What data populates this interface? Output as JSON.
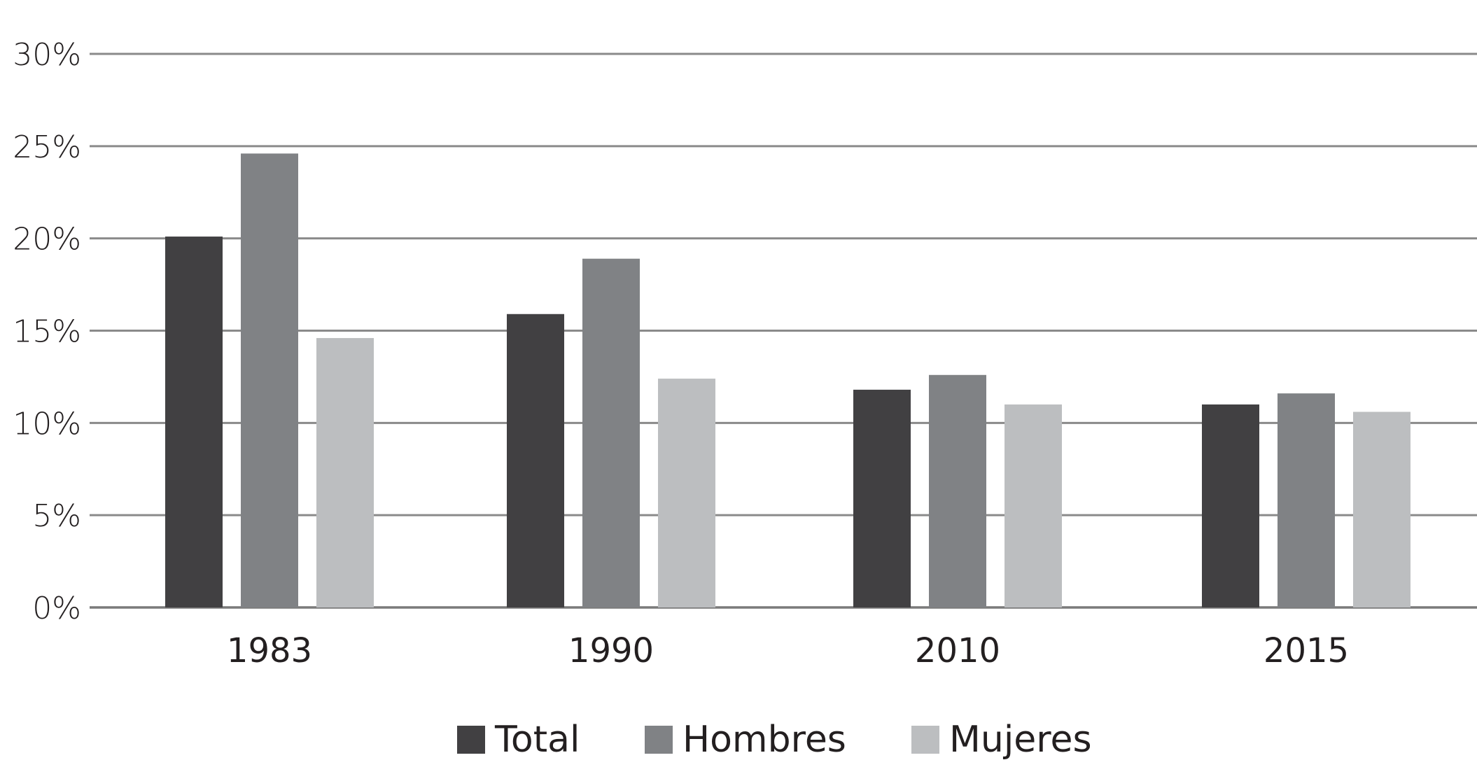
{
  "chart_data": {
    "type": "bar",
    "categories": [
      "1983",
      "1990",
      "2010",
      "2015"
    ],
    "series": [
      {
        "name": "Total",
        "values": [
          20.1,
          15.9,
          11.8,
          11.0
        ],
        "color": "#414042"
      },
      {
        "name": "Hombres",
        "values": [
          24.6,
          18.9,
          12.6,
          11.6
        ],
        "color": "#808285"
      },
      {
        "name": "Mujeres",
        "values": [
          14.6,
          12.4,
          11.0,
          10.6
        ],
        "color": "#bcbec0"
      }
    ],
    "ylim": [
      0,
      30
    ],
    "yticks": [
      0,
      5,
      10,
      15,
      20,
      25,
      30
    ],
    "ytick_labels": [
      "0%",
      "5%",
      "10%",
      "15%",
      "20%",
      "25%",
      "30%"
    ],
    "grid": true,
    "legend_position": "bottom-center"
  }
}
